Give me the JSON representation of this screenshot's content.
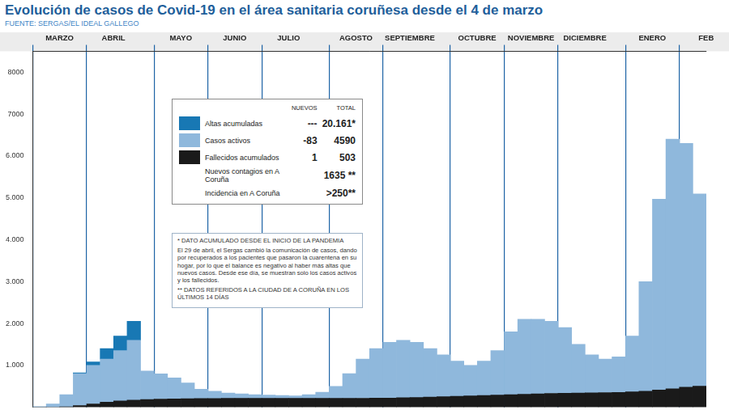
{
  "chart_data": {
    "type": "bar",
    "title": "Evolución de casos de Covid-19 en el área sanitaria coruñesa desde el 4 de marzo",
    "subtitle": "FUENTE: SERGAS/EL IDEAL GALLEGO",
    "categories": [
      "MARZO",
      null,
      null,
      null,
      "ABRIL",
      null,
      null,
      null,
      null,
      "MAYO",
      null,
      null,
      null,
      "JUNIO",
      null,
      null,
      null,
      "JULIO",
      null,
      null,
      null,
      null,
      "AGOSTO",
      null,
      null,
      null,
      "SEPTIEMBRE",
      null,
      null,
      null,
      null,
      "OCTUBRE",
      null,
      null,
      null,
      "NOVIEMBRE",
      null,
      null,
      null,
      "DICIEMBRE",
      null,
      null,
      null,
      null,
      "ENERO",
      null,
      null,
      null,
      "FEB",
      null
    ],
    "series": [
      {
        "name": "Fallecidos acumulados",
        "color": "#1a1a1a",
        "values": [
          0,
          2,
          10,
          40,
          80,
          120,
          150,
          170,
          185,
          195,
          200,
          205,
          208,
          210,
          211,
          211,
          212,
          212,
          212,
          212,
          212,
          212,
          212,
          213,
          215,
          217,
          220,
          225,
          230,
          240,
          250,
          260,
          270,
          280,
          290,
          300,
          310,
          320,
          330,
          335,
          340,
          345,
          350,
          355,
          365,
          380,
          410,
          440,
          480,
          503
        ]
      },
      {
        "name": "Casos activos",
        "color": "#8fb8dc",
        "values": [
          15,
          78,
          290,
          760,
          920,
          1030,
          1200,
          1430,
          680,
          600,
          500,
          375,
          222,
          170,
          129,
          109,
          88,
          78,
          68,
          58,
          88,
          148,
          288,
          587,
          935,
          1183,
          1330,
          1375,
          1320,
          1160,
          1000,
          840,
          730,
          820,
          1060,
          1500,
          1790,
          1780,
          1720,
          1565,
          1160,
          905,
          800,
          845,
          1335,
          2620,
          4560,
          5960,
          5820,
          4590
        ]
      },
      {
        "name": "Altas acumuladas",
        "color": "#1878b4",
        "values": [
          null,
          null,
          null,
          20,
          80,
          250,
          350,
          450,
          null,
          null,
          null,
          null,
          null,
          null,
          null,
          null,
          null,
          null,
          null,
          null,
          null,
          null,
          null,
          null,
          null,
          null,
          null,
          null,
          null,
          null,
          null,
          null,
          null,
          null,
          null,
          null,
          null,
          null,
          null,
          null,
          null,
          null,
          null,
          null,
          null,
          null,
          null,
          null,
          null,
          null
        ]
      }
    ],
    "stacked": true,
    "ylim": [
      0,
      8500
    ],
    "yticks": [
      {
        "value": 1000,
        "label": "1.000"
      },
      {
        "value": 2000,
        "label": "2.000"
      },
      {
        "value": 3000,
        "label": "3.000"
      },
      {
        "value": 4000,
        "label": "4.000"
      },
      {
        "value": 5000,
        "label": "5.000"
      },
      {
        "value": 6000,
        "label": "6.000"
      },
      7000,
      8000
    ],
    "grid": "x",
    "summary_table": {
      "headers": [
        "NUEVOS",
        "TOTAL"
      ],
      "rows": [
        {
          "name": "Altas acumuladas",
          "color": "#1878b4",
          "nuevos": "---",
          "total": "20.161*"
        },
        {
          "name": "Casos activos",
          "color": "#8fb8dc",
          "nuevos": "-83",
          "total": "4590"
        },
        {
          "name": "Fallecidos acumulados",
          "color": "#1a1a1a",
          "nuevos": "1",
          "total": "503"
        },
        {
          "name": "Nuevos contagios en A Coruña",
          "total": "1635 **"
        },
        {
          "name": "Incidencia en A Coruña",
          "total": ">250**"
        }
      ]
    },
    "notes": [
      "* DATO ACUMULADO DESDE EL INICIO DE LA PANDEMIA",
      "El 29 de abril, el Sergas cambió la comunicación de casos, dando por recuperados a los pacientes que pasaron la cuarentena en su hogar, por lo que el balance es negativo al haber más altas que nuevos casos. Desde ese día, se muestran solo los casos activos y los fallecidos.",
      "** DATOS REFERIDOS A LA CIUDAD DE A CORUÑA EN LOS ÚLTIMOS 14 DÍAS"
    ]
  }
}
